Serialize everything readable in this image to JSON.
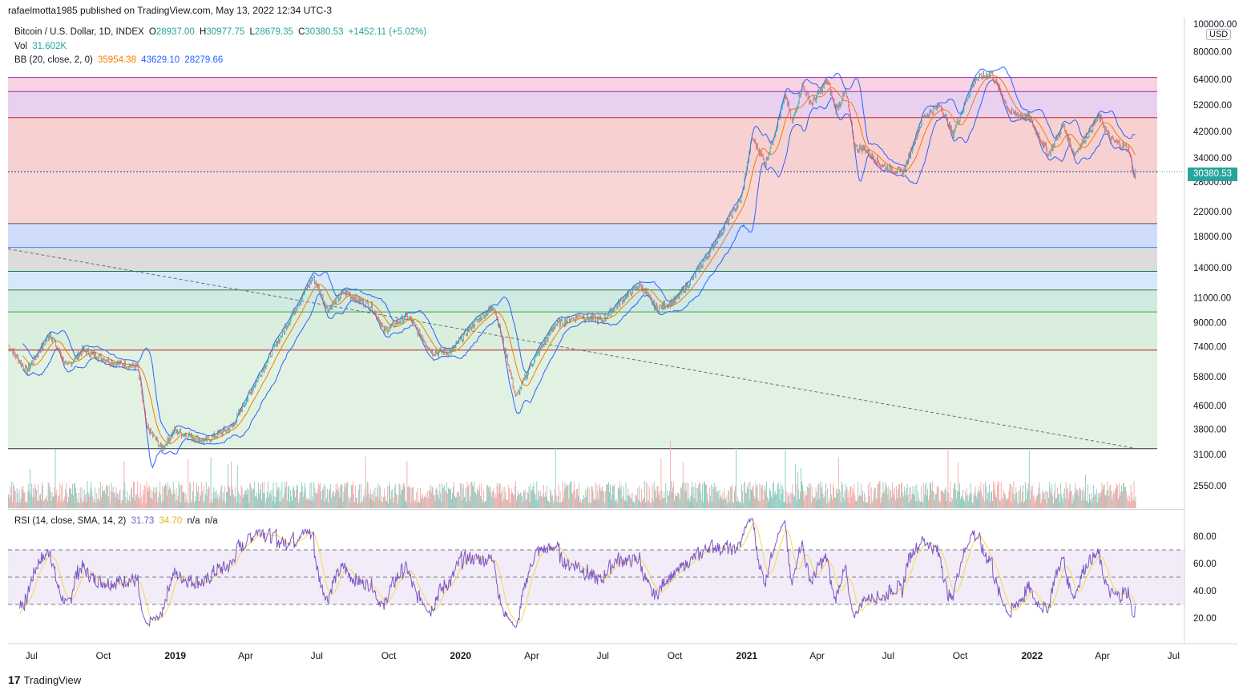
{
  "header": {
    "published": "rafaelmotta1985 published on TradingView.com, May 13, 2022 12:34 UTC-3"
  },
  "legend": {
    "symbol": "Bitcoin / U.S. Dollar, 1D, INDEX",
    "o_label": "O",
    "o_value": "28937.00",
    "h_label": "H",
    "h_value": "30977.75",
    "l_label": "L",
    "l_value": "28679.35",
    "c_label": "C",
    "c_value": "30380.53",
    "change": "+1452.11 (+5.02%)",
    "vol_label": "Vol",
    "vol_value": "31.602K",
    "bb_label": "BB (20, close, 2, 0)",
    "bb_basis": "35954.38",
    "bb_upper": "43629.10",
    "bb_lower": "28279.66",
    "rsi_label": "RSI (14, close, SMA, 14, 2)",
    "rsi_value": "31.73",
    "rsi_ma": "34.70",
    "rsi_na1": "n/a",
    "rsi_na2": "n/a"
  },
  "price_axis": {
    "currency": "USD",
    "last_price": "30380.53",
    "ticks": [
      "100000.00",
      "80000.00",
      "64000.00",
      "52000.00",
      "42000.00",
      "34000.00",
      "28000.00",
      "22000.00",
      "18000.00",
      "14000.00",
      "11000.00",
      "9000.00",
      "7400.00",
      "5800.00",
      "4600.00",
      "3800.00",
      "3100.00",
      "2550.00"
    ]
  },
  "rsi_axis": {
    "ticks": [
      "80.00",
      "60.00",
      "40.00",
      "20.00"
    ]
  },
  "time_axis": {
    "ticks": [
      "Jul",
      "Oct",
      "2019",
      "Apr",
      "Jul",
      "Oct",
      "2020",
      "Apr",
      "Jul",
      "Oct",
      "2021",
      "Apr",
      "Jul",
      "Oct",
      "2022",
      "Apr",
      "Jul"
    ]
  },
  "footer": {
    "brand": "TradingView",
    "logo": "17"
  },
  "colors": {
    "up": "#26a69a",
    "down": "#ef5350",
    "bb_basis": "#f57c00",
    "bb_band": "#2962ff",
    "rsi": "#7e57c2",
    "rsi_ma": "#f9d74a"
  },
  "chart_data": {
    "type": "candlestick",
    "y_scale": "log",
    "x_range": [
      "2018-06-01",
      "2022-07-15"
    ],
    "fib_levels": [
      65000,
      58000,
      47000,
      30380,
      20000,
      16500,
      13600,
      11700,
      9800,
      7200,
      3250
    ],
    "fib_zone_colors": [
      "#f8d3e2",
      "#e8d0ef",
      "#f7d0d2",
      "#f9d6d6",
      "#cfdcfb",
      "#dcdcdc",
      "#d6e9fa",
      "#cfe9e3",
      "#d9eedd",
      "#e2f2e2",
      "#f8d4d6"
    ],
    "trendline": {
      "from": [
        "2018-06-01",
        16300
      ],
      "to": [
        "2022-05-13",
        3260
      ]
    },
    "series": [
      {
        "name": "BTC daily close (approx.)",
        "points": [
          [
            "2018-06-01",
            7500
          ],
          [
            "2018-06-25",
            6100
          ],
          [
            "2018-07-25",
            8200
          ],
          [
            "2018-08-15",
            6300
          ],
          [
            "2018-09-05",
            7200
          ],
          [
            "2018-10-15",
            6500
          ],
          [
            "2018-11-14",
            6300
          ],
          [
            "2018-11-25",
            3900
          ],
          [
            "2018-12-15",
            3250
          ],
          [
            "2018-12-31",
            3750
          ],
          [
            "2019-02-08",
            3450
          ],
          [
            "2019-03-15",
            3900
          ],
          [
            "2019-04-05",
            5000
          ],
          [
            "2019-05-15",
            8000
          ],
          [
            "2019-06-26",
            13000
          ],
          [
            "2019-07-15",
            10000
          ],
          [
            "2019-08-05",
            11500
          ],
          [
            "2019-09-10",
            10200
          ],
          [
            "2019-09-25",
            8400
          ],
          [
            "2019-10-25",
            9500
          ],
          [
            "2019-11-25",
            7100
          ],
          [
            "2019-12-20",
            7100
          ],
          [
            "2020-01-15",
            8800
          ],
          [
            "2020-02-13",
            10300
          ],
          [
            "2020-03-12",
            4900
          ],
          [
            "2020-03-31",
            6400
          ],
          [
            "2020-04-30",
            8800
          ],
          [
            "2020-05-30",
            9500
          ],
          [
            "2020-06-30",
            9150
          ],
          [
            "2020-07-30",
            11100
          ],
          [
            "2020-08-17",
            12200
          ],
          [
            "2020-09-08",
            10100
          ],
          [
            "2020-10-01",
            10700
          ],
          [
            "2020-10-25",
            13000
          ],
          [
            "2020-11-15",
            16000
          ],
          [
            "2020-12-01",
            19000
          ],
          [
            "2020-12-25",
            24500
          ],
          [
            "2021-01-08",
            40000
          ],
          [
            "2021-01-25",
            32500
          ],
          [
            "2021-02-20",
            56000
          ],
          [
            "2021-02-28",
            45000
          ],
          [
            "2021-03-13",
            61000
          ],
          [
            "2021-03-25",
            52500
          ],
          [
            "2021-04-14",
            63500
          ],
          [
            "2021-04-25",
            50000
          ],
          [
            "2021-05-08",
            58000
          ],
          [
            "2021-05-19",
            37000
          ],
          [
            "2021-06-01",
            36500
          ],
          [
            "2021-06-22",
            32000
          ],
          [
            "2021-07-20",
            30000
          ],
          [
            "2021-08-14",
            47000
          ],
          [
            "2021-09-06",
            52000
          ],
          [
            "2021-09-21",
            41000
          ],
          [
            "2021-10-20",
            64000
          ],
          [
            "2021-11-10",
            67500
          ],
          [
            "2021-12-04",
            49000
          ],
          [
            "2021-12-28",
            47000
          ],
          [
            "2022-01-22",
            35000
          ],
          [
            "2022-02-10",
            44000
          ],
          [
            "2022-02-24",
            35000
          ],
          [
            "2022-03-28",
            47500
          ],
          [
            "2022-04-11",
            39500
          ],
          [
            "2022-05-05",
            36500
          ],
          [
            "2022-05-11",
            29000
          ],
          [
            "2022-05-13",
            30380
          ]
        ]
      }
    ],
    "volume_range": [
      0,
      60000
    ],
    "rsi_range": [
      10,
      95
    ],
    "rsi_bands": [
      70,
      50,
      30
    ]
  }
}
